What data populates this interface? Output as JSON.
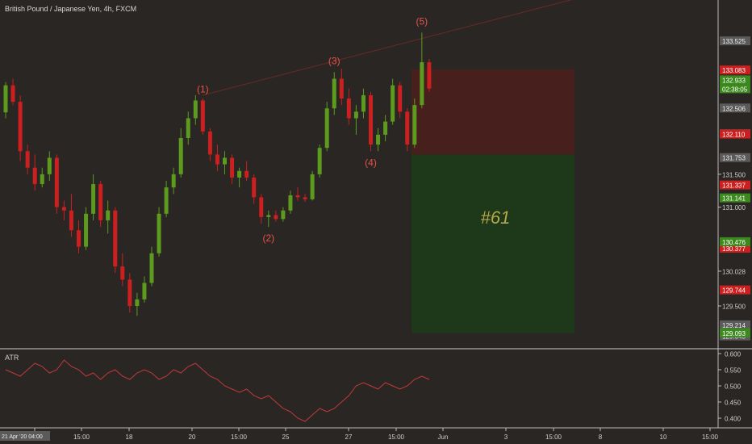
{
  "title": "British Pound / Japanese Yen, 4h, FXCM",
  "colors": {
    "background": "#2a2623",
    "up": "#5d9b1f",
    "down": "#cc1f1f",
    "wave_label": "#e8524a",
    "risk_zone": "#4a1f1d",
    "reward_zone": "#1e3a1a",
    "atr_line": "#c23a3a",
    "trendline": "#6b2a26",
    "trade_label": "#b8a64a"
  },
  "wave_labels": [
    "(1)",
    "(2)",
    "(3)",
    "(4)",
    "(5)"
  ],
  "trade_label": "#61",
  "atr": {
    "label": "ATR",
    "axis": [
      "0.600",
      "0.550",
      "0.500",
      "0.450",
      "0.400"
    ]
  },
  "price_axis": {
    "ticks": [
      "133.525",
      "132.506",
      "132.115",
      "131.753",
      "131.500",
      "131.000",
      "130.028",
      "129.500",
      "129.214",
      "129.045"
    ],
    "red_tags": [
      "133.083",
      "132.110",
      "131.337",
      "130.377",
      "129.744"
    ],
    "green_tags": [
      "132.933",
      "131.141",
      "130.476",
      "129.093"
    ],
    "countdown": "02:38:05"
  },
  "time_axis": {
    "labels": [
      "13",
      "15:00",
      "18",
      "20",
      "15:00",
      "25",
      "27",
      "15:00",
      "Jun",
      "3",
      "15:00",
      "8",
      "10",
      "15:00"
    ],
    "start_tag": "21 Apr '20  04:00"
  },
  "chart_data": {
    "type": "candlestick",
    "title": "British Pound / Japanese Yen, 4h, FXCM",
    "ylim": [
      128.9,
      133.9
    ],
    "candles": [
      {
        "o": 132.44,
        "h": 132.9,
        "l": 132.35,
        "c": 132.85
      },
      {
        "o": 132.85,
        "h": 132.95,
        "l": 132.55,
        "c": 132.6
      },
      {
        "o": 132.6,
        "h": 132.7,
        "l": 131.7,
        "c": 131.85
      },
      {
        "o": 131.85,
        "h": 131.95,
        "l": 131.5,
        "c": 131.6
      },
      {
        "o": 131.6,
        "h": 131.8,
        "l": 131.25,
        "c": 131.35
      },
      {
        "o": 131.35,
        "h": 131.6,
        "l": 131.3,
        "c": 131.5
      },
      {
        "o": 131.5,
        "h": 131.85,
        "l": 131.4,
        "c": 131.75
      },
      {
        "o": 131.75,
        "h": 131.8,
        "l": 130.9,
        "c": 131.0
      },
      {
        "o": 131.0,
        "h": 131.1,
        "l": 130.8,
        "c": 130.95
      },
      {
        "o": 130.95,
        "h": 131.2,
        "l": 130.55,
        "c": 130.65
      },
      {
        "o": 130.65,
        "h": 130.8,
        "l": 130.3,
        "c": 130.4
      },
      {
        "o": 130.4,
        "h": 131.0,
        "l": 130.35,
        "c": 130.9
      },
      {
        "o": 130.9,
        "h": 131.5,
        "l": 130.8,
        "c": 131.35
      },
      {
        "o": 131.35,
        "h": 131.4,
        "l": 130.7,
        "c": 130.8
      },
      {
        "o": 130.8,
        "h": 131.1,
        "l": 130.6,
        "c": 130.95
      },
      {
        "o": 130.95,
        "h": 131.0,
        "l": 130.0,
        "c": 130.1
      },
      {
        "o": 130.1,
        "h": 130.3,
        "l": 129.8,
        "c": 129.9
      },
      {
        "o": 129.9,
        "h": 130.0,
        "l": 129.4,
        "c": 129.5
      },
      {
        "o": 129.5,
        "h": 129.7,
        "l": 129.35,
        "c": 129.6
      },
      {
        "o": 129.6,
        "h": 129.95,
        "l": 129.55,
        "c": 129.85
      },
      {
        "o": 129.85,
        "h": 130.4,
        "l": 129.8,
        "c": 130.3
      },
      {
        "o": 130.3,
        "h": 131.0,
        "l": 130.25,
        "c": 130.9
      },
      {
        "o": 130.9,
        "h": 131.4,
        "l": 130.85,
        "c": 131.3
      },
      {
        "o": 131.3,
        "h": 131.6,
        "l": 131.2,
        "c": 131.5
      },
      {
        "o": 131.5,
        "h": 132.2,
        "l": 131.45,
        "c": 132.05
      },
      {
        "o": 132.05,
        "h": 132.45,
        "l": 131.95,
        "c": 132.35
      },
      {
        "o": 132.35,
        "h": 132.7,
        "l": 132.25,
        "c": 132.62
      },
      {
        "o": 132.62,
        "h": 132.65,
        "l": 132.1,
        "c": 132.15
      },
      {
        "o": 132.15,
        "h": 132.2,
        "l": 131.7,
        "c": 131.8
      },
      {
        "o": 131.8,
        "h": 131.95,
        "l": 131.55,
        "c": 131.65
      },
      {
        "o": 131.65,
        "h": 131.85,
        "l": 131.5,
        "c": 131.75
      },
      {
        "o": 131.75,
        "h": 131.8,
        "l": 131.35,
        "c": 131.45
      },
      {
        "o": 131.45,
        "h": 131.6,
        "l": 131.3,
        "c": 131.55
      },
      {
        "o": 131.55,
        "h": 131.7,
        "l": 131.4,
        "c": 131.45
      },
      {
        "o": 131.45,
        "h": 131.5,
        "l": 131.05,
        "c": 131.15
      },
      {
        "o": 131.15,
        "h": 131.2,
        "l": 130.75,
        "c": 130.85
      },
      {
        "o": 130.85,
        "h": 130.95,
        "l": 130.7,
        "c": 130.88
      },
      {
        "o": 130.88,
        "h": 130.95,
        "l": 130.78,
        "c": 130.82
      },
      {
        "o": 130.82,
        "h": 131.0,
        "l": 130.78,
        "c": 130.95
      },
      {
        "o": 130.95,
        "h": 131.25,
        "l": 130.9,
        "c": 131.18
      },
      {
        "o": 131.18,
        "h": 131.3,
        "l": 131.1,
        "c": 131.15
      },
      {
        "o": 131.15,
        "h": 131.2,
        "l": 131.08,
        "c": 131.12
      },
      {
        "o": 131.12,
        "h": 131.55,
        "l": 131.1,
        "c": 131.5
      },
      {
        "o": 131.5,
        "h": 131.95,
        "l": 131.45,
        "c": 131.9
      },
      {
        "o": 131.9,
        "h": 132.6,
        "l": 131.85,
        "c": 132.5
      },
      {
        "o": 132.5,
        "h": 133.05,
        "l": 132.4,
        "c": 132.95
      },
      {
        "o": 132.95,
        "h": 133.1,
        "l": 132.55,
        "c": 132.65
      },
      {
        "o": 132.65,
        "h": 132.8,
        "l": 132.25,
        "c": 132.35
      },
      {
        "o": 132.35,
        "h": 132.55,
        "l": 132.1,
        "c": 132.45
      },
      {
        "o": 132.45,
        "h": 132.8,
        "l": 132.35,
        "c": 132.7
      },
      {
        "o": 132.7,
        "h": 132.75,
        "l": 131.85,
        "c": 131.95
      },
      {
        "o": 131.95,
        "h": 132.2,
        "l": 131.85,
        "c": 132.1
      },
      {
        "o": 132.1,
        "h": 132.4,
        "l": 132.0,
        "c": 132.3
      },
      {
        "o": 132.3,
        "h": 132.95,
        "l": 132.25,
        "c": 132.85
      },
      {
        "o": 132.85,
        "h": 132.9,
        "l": 132.35,
        "c": 132.45
      },
      {
        "o": 132.45,
        "h": 132.5,
        "l": 131.85,
        "c": 131.95
      },
      {
        "o": 131.95,
        "h": 132.65,
        "l": 131.9,
        "c": 132.55
      },
      {
        "o": 132.55,
        "h": 133.65,
        "l": 132.5,
        "c": 133.2
      },
      {
        "o": 133.2,
        "h": 133.25,
        "l": 132.75,
        "c": 132.8
      }
    ],
    "waves": [
      {
        "label": "(1)",
        "index": 27,
        "price": 132.62
      },
      {
        "label": "(2)",
        "index": 36,
        "price": 130.7
      },
      {
        "label": "(3)",
        "index": 45,
        "price": 133.05
      },
      {
        "label": "(4)",
        "index": 50,
        "price": 131.85
      },
      {
        "label": "(5)",
        "index": 57,
        "price": 133.65
      }
    ],
    "position": {
      "entry": 131.8,
      "stop": 133.09,
      "target": 129.09,
      "label": "#61"
    },
    "atr": {
      "ylim": [
        0.38,
        0.605
      ],
      "values": [
        0.55,
        0.54,
        0.53,
        0.55,
        0.57,
        0.56,
        0.54,
        0.55,
        0.58,
        0.56,
        0.55,
        0.53,
        0.54,
        0.52,
        0.54,
        0.55,
        0.53,
        0.52,
        0.54,
        0.55,
        0.54,
        0.52,
        0.53,
        0.55,
        0.54,
        0.56,
        0.57,
        0.55,
        0.53,
        0.52,
        0.5,
        0.49,
        0.48,
        0.49,
        0.47,
        0.46,
        0.47,
        0.45,
        0.43,
        0.42,
        0.4,
        0.39,
        0.41,
        0.43,
        0.42,
        0.43,
        0.45,
        0.47,
        0.5,
        0.51,
        0.5,
        0.49,
        0.51,
        0.5,
        0.49,
        0.5,
        0.52,
        0.53,
        0.52
      ]
    }
  }
}
